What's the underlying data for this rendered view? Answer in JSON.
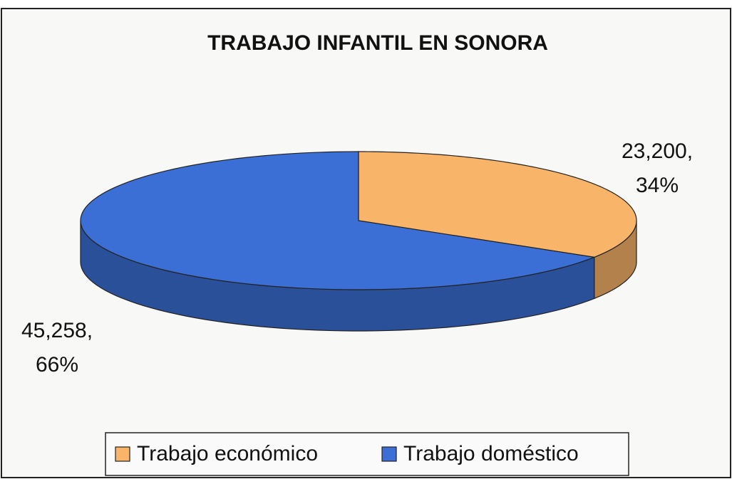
{
  "chart_data": {
    "type": "pie",
    "title": "TRABAJO INFANTIL EN SONORA",
    "categories": [
      "Trabajo económico",
      "Trabajo doméstico"
    ],
    "values": [
      23200,
      45258
    ],
    "value_labels": [
      "23,200, 34%",
      "45,258, 66%"
    ],
    "colors": [
      "#f8b56a",
      "#3b6fd6"
    ],
    "legend": "bottom"
  }
}
